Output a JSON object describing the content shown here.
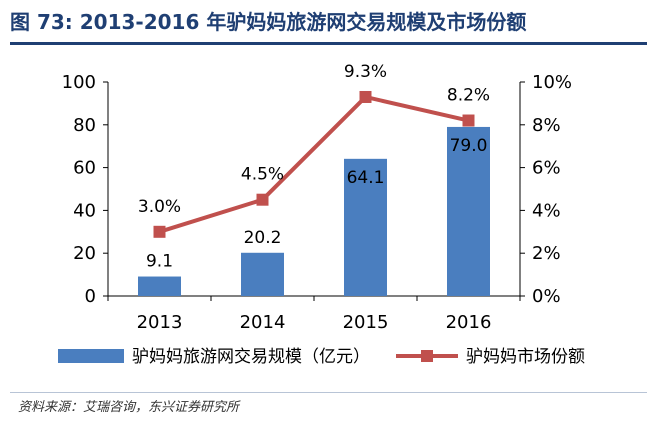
{
  "title": "图 73: 2013-2016 年驴妈妈旅游网交易规模及市场份额",
  "source": "资料来源：艾瑞咨询，东兴证券研究所",
  "colors": {
    "bar": "#4a7ebf",
    "line": "#c0504d",
    "title": "#1f3f73"
  },
  "chart_data": {
    "type": "bar+line",
    "categories": [
      "2013",
      "2014",
      "2015",
      "2016"
    ],
    "series": [
      {
        "name": "驴妈妈旅游网交易规模（亿元）",
        "type": "bar",
        "axis": "left",
        "values": [
          9.1,
          20.2,
          64.1,
          79.0
        ],
        "labels": [
          "9.1",
          "20.2",
          "64.1",
          "79.0"
        ]
      },
      {
        "name": "驴妈妈市场份额",
        "type": "line",
        "axis": "right",
        "values": [
          3.0,
          4.5,
          9.3,
          8.2
        ],
        "labels": [
          "3.0%",
          "4.5%",
          "9.3%",
          "8.2%"
        ]
      }
    ],
    "y_left": {
      "lim": [
        0,
        100
      ],
      "ticks": [
        "0",
        "20",
        "40",
        "60",
        "80",
        "100"
      ]
    },
    "y_right": {
      "lim": [
        0,
        10
      ],
      "ticks": [
        "0%",
        "2%",
        "4%",
        "6%",
        "8%",
        "10%"
      ]
    },
    "legend": "bottom",
    "grid": false
  }
}
